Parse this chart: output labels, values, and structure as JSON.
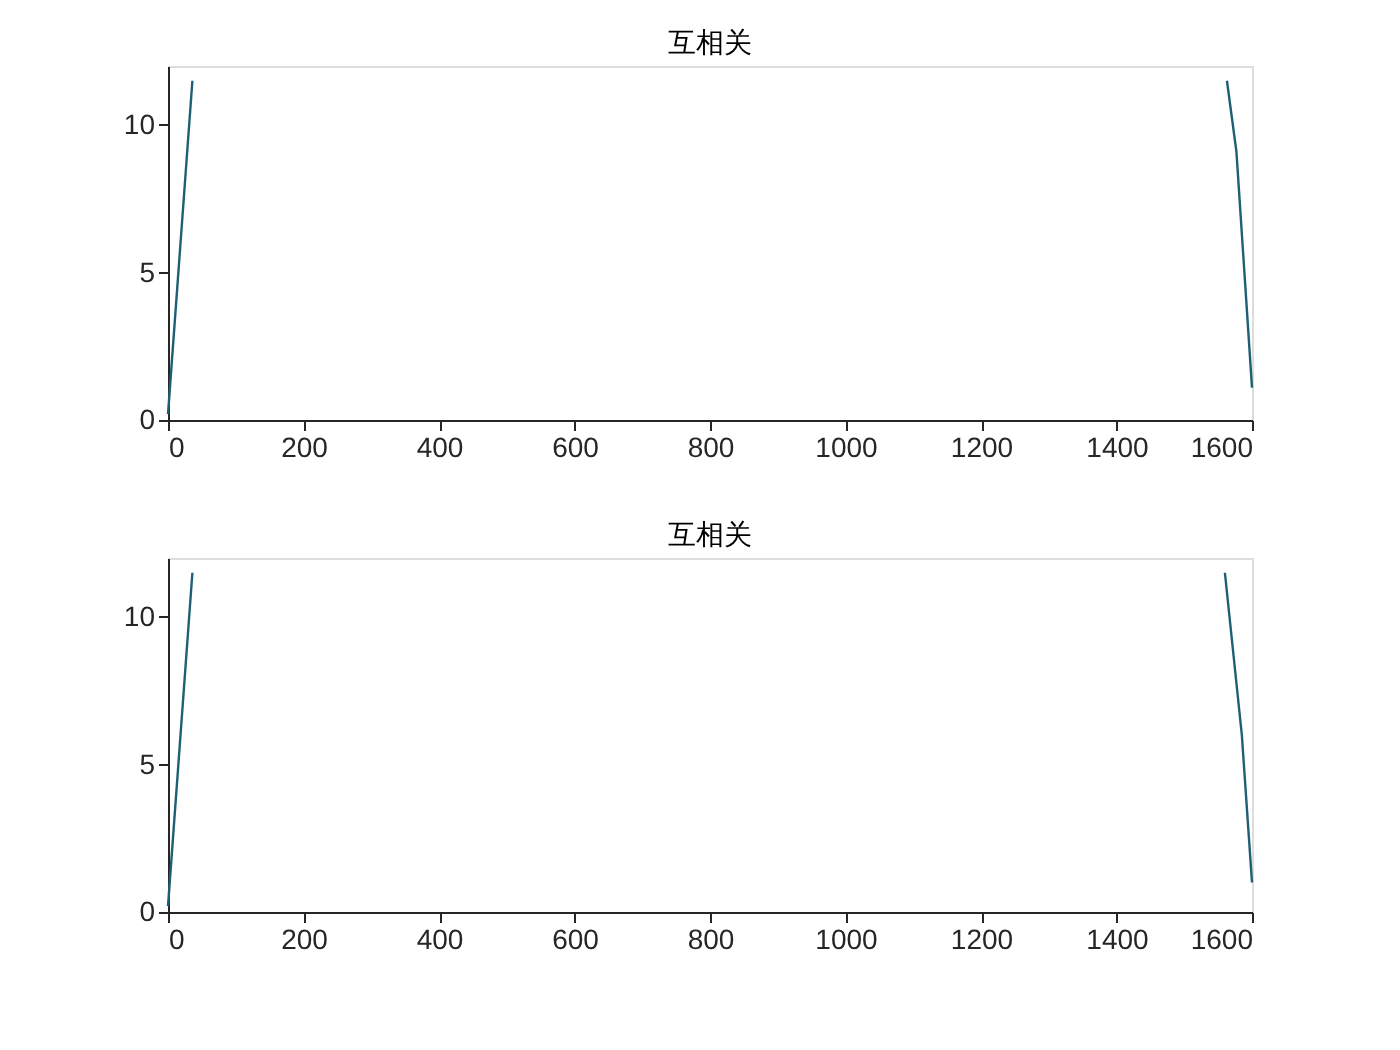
{
  "chart_data": [
    {
      "type": "line",
      "title": "互相关",
      "x": [
        0,
        36,
        1000,
        1563,
        1577,
        1600
      ],
      "series": [
        {
          "color": "#1f5f73",
          "values": [
            0.2,
            11.5,
            null,
            11.5,
            9.1,
            1.1
          ]
        }
      ],
      "xlim": [
        0,
        1600
      ],
      "xticks": [
        0,
        200,
        400,
        600,
        800,
        1000,
        1200,
        1400,
        1600
      ],
      "ylim": [
        0,
        12
      ],
      "yticks": [
        0,
        5,
        10
      ],
      "grid": false,
      "marker": "none",
      "line_style": "solid"
    },
    {
      "type": "line",
      "title": "互相关",
      "x": [
        0,
        36,
        1000,
        1560,
        1585,
        1600
      ],
      "series": [
        {
          "color": "#1f5f73",
          "values": [
            0.2,
            11.5,
            null,
            11.5,
            6,
            1.0
          ]
        }
      ],
      "xlim": [
        0,
        1600
      ],
      "xticks": [
        0,
        200,
        400,
        600,
        800,
        1000,
        1200,
        1400,
        1600
      ],
      "ylim": [
        0,
        12
      ],
      "yticks": [
        0,
        5,
        10
      ],
      "grid": false,
      "marker": "none",
      "line_style": "solid"
    }
  ]
}
